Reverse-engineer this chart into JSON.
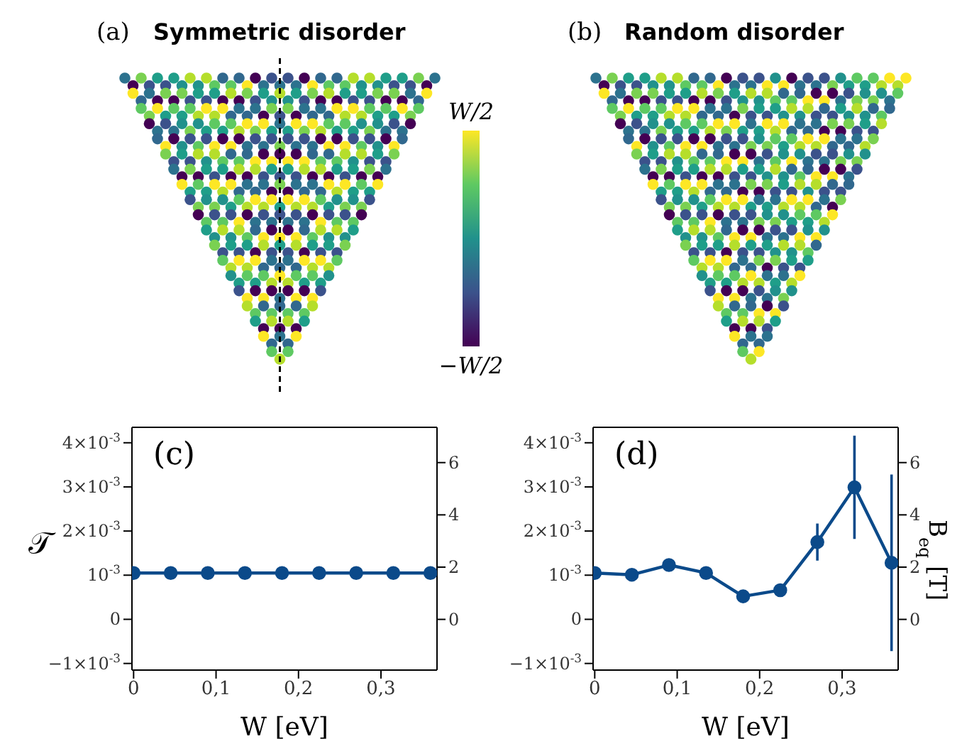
{
  "chart_data": [
    {
      "type": "other",
      "title": "Symmetric disorder",
      "annotations": [
        "(a)"
      ]
    },
    {
      "type": "other",
      "annotations": [
        "W/2",
        "−W/2"
      ]
    },
    {
      "type": "other",
      "title": "Random disorder",
      "annotations": [
        "(b)"
      ]
    },
    {
      "type": "line",
      "title": "(c)",
      "xlabel": "W [eV]",
      "ylabel": "𝒯",
      "x": [
        0,
        0.045,
        0.09,
        0.135,
        0.18,
        0.225,
        0.27,
        0.315,
        0.36
      ],
      "series": [
        {
          "color": "#0b4a8a",
          "values": [
            0.00105,
            0.00105,
            0.00105,
            0.00105,
            0.00105,
            0.00105,
            0.00105,
            0.00105,
            0.00105
          ]
        }
      ],
      "xlim": [
        -0.002,
        0.368
      ],
      "xticks": [
        0,
        {
          "value": 0.1,
          "label": "0,1"
        },
        {
          "value": 0.2,
          "label": "0,2"
        },
        {
          "value": 0.3,
          "label": "0,3"
        }
      ],
      "ylim": [
        -0.00115,
        0.00435
      ],
      "yticks": [
        {
          "value": -0.001,
          "label": "−1×10$^{-3}$"
        },
        0,
        {
          "value": 0.001,
          "label": "10$^{-3}$"
        },
        {
          "value": 0.002,
          "label": "2×10$^{-3}$"
        },
        {
          "value": 0.003,
          "label": "3×10$^{-3}$"
        },
        {
          "value": 0.004,
          "label": "4×10$^{-3}$"
        }
      ],
      "y2lim": [
        -1.94,
        7.35
      ],
      "y2ticks": [
        0,
        2,
        4,
        6
      ],
      "marker": "circle",
      "grid": false,
      "legend": false
    },
    {
      "type": "line",
      "title": "(d)",
      "xlabel": "W [eV]",
      "y2label": "B$_{eq}$ [T]",
      "x": [
        0,
        0.045,
        0.09,
        0.135,
        0.18,
        0.225,
        0.27,
        0.315,
        0.36
      ],
      "series": [
        {
          "color": "#0b4a8a",
          "values": [
            0.00105,
            0.00101,
            0.00123,
            0.00105,
            0.00052,
            0.00066,
            0.00175,
            0.00299,
            0.00128
          ],
          "errors": [
            null,
            null,
            null,
            null,
            null,
            null,
            0.00042,
            0.00117,
            0.002
          ]
        }
      ],
      "xlim": [
        -0.002,
        0.368
      ],
      "xticks": [
        0,
        {
          "value": 0.1,
          "label": "0,1"
        },
        {
          "value": 0.2,
          "label": "0,2"
        },
        {
          "value": 0.3,
          "label": "0,3"
        }
      ],
      "ylim": [
        -0.00115,
        0.00435
      ],
      "yticks": [
        {
          "value": -0.001,
          "label": "−1×10$^{-3}$"
        },
        0,
        {
          "value": 0.001,
          "label": "10$^{-3}$"
        },
        {
          "value": 0.002,
          "label": "2×10$^{-3}$"
        },
        {
          "value": 0.003,
          "label": "3×10$^{-3}$"
        },
        {
          "value": 0.004,
          "label": "4×10$^{-3}$"
        }
      ],
      "y2lim": [
        -1.94,
        7.35
      ],
      "y2ticks": [
        0,
        2,
        4,
        6
      ],
      "marker": "circle",
      "grid": false,
      "legend": false
    }
  ]
}
